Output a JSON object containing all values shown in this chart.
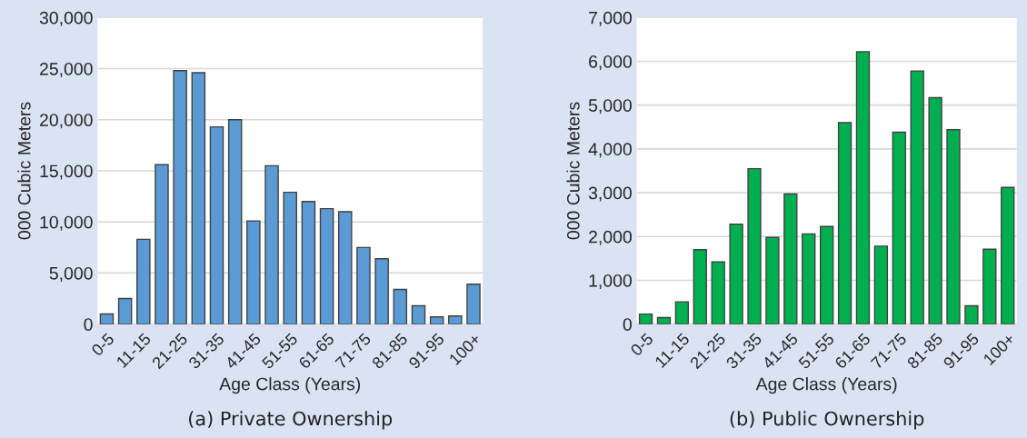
{
  "chart_data": [
    {
      "type": "bar",
      "title": "(a) Private Ownership",
      "xlabel": "Age Class (Years)",
      "ylabel": "000 Cubic Meters",
      "categories": [
        "0-5",
        null,
        "11-15",
        null,
        "21-25",
        null,
        "31-35",
        null,
        "41-45",
        null,
        "51-55",
        null,
        "61-65",
        null,
        "71-75",
        null,
        "81-85",
        null,
        "91-95",
        null,
        "100+"
      ],
      "series": [
        {
          "color": "#5b9bd5",
          "values": [
            1000,
            2500,
            8300,
            15600,
            24800,
            24600,
            19300,
            20000,
            10100,
            15500,
            12900,
            12000,
            11300,
            11000,
            7500,
            6400,
            3400,
            1800,
            700,
            800,
            3900
          ]
        }
      ],
      "ylim": [
        0,
        30000
      ],
      "yticks": [
        {
          "value": 0,
          "label": "0"
        },
        {
          "value": 5000,
          "label": "5,000"
        },
        {
          "value": 10000,
          "label": "10,000"
        },
        {
          "value": 15000,
          "label": "15,000"
        },
        {
          "value": 20000,
          "label": "20,000"
        },
        {
          "value": 25000,
          "label": "25,000"
        },
        {
          "value": 30000,
          "label": "30,000"
        }
      ],
      "grid": "y",
      "legend": false
    },
    {
      "type": "bar",
      "title": "(b) Public Ownership",
      "xlabel": "Age Class (Years)",
      "ylabel": "000 Cubic Meters",
      "categories": [
        "0-5",
        null,
        "11-15",
        null,
        "21-25",
        null,
        "31-35",
        null,
        "41-45",
        null,
        "51-55",
        null,
        "61-65",
        null,
        "71-75",
        null,
        "81-85",
        null,
        "91-95",
        null,
        "100+"
      ],
      "series": [
        {
          "color": "#00b050",
          "values": [
            230,
            150,
            510,
            1700,
            1420,
            2280,
            3550,
            1980,
            2970,
            2060,
            2230,
            4600,
            6220,
            1780,
            4380,
            5780,
            5170,
            4440,
            420,
            1710,
            3120
          ]
        }
      ],
      "ylim": [
        0,
        7000
      ],
      "yticks": [
        {
          "value": 0,
          "label": "0"
        },
        {
          "value": 1000,
          "label": "1,000"
        },
        {
          "value": 2000,
          "label": "2,000"
        },
        {
          "value": 3000,
          "label": "3,000"
        },
        {
          "value": 4000,
          "label": "4,000"
        },
        {
          "value": 5000,
          "label": "5,000"
        },
        {
          "value": 6000,
          "label": "6,000"
        },
        {
          "value": 7000,
          "label": "7,000"
        }
      ],
      "grid": "y",
      "legend": false
    }
  ]
}
